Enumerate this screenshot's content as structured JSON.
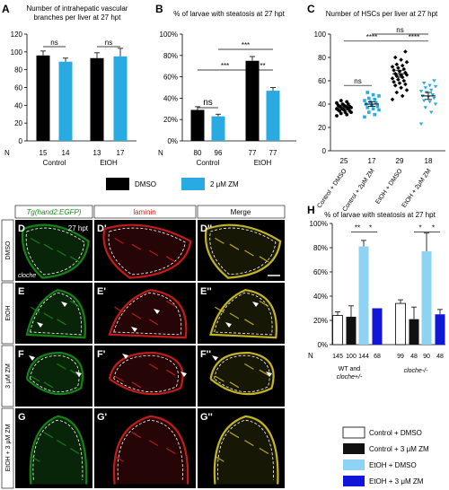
{
  "colors": {
    "dmso": "#000000",
    "zm": "#29abe2",
    "ctrl_zm_h": "#111111",
    "etoh_dmso_h": "#8fd3f4",
    "etoh_zm_h": "#1116d9",
    "green": "#1a8f1a",
    "red": "#d42020",
    "bg": "#ffffff"
  },
  "legend_top": {
    "dmso": "DMSO",
    "zm": "2 μM ZM"
  },
  "chart_data": [
    {
      "panel": "A",
      "type": "bar",
      "title": "Number of intrahepatic vascular branches per liver at 27 hpt",
      "groups": [
        "Control",
        "EtOH"
      ],
      "series": [
        {
          "name": "DMSO",
          "values": [
            96,
            93
          ],
          "err": [
            5,
            6
          ]
        },
        {
          "name": "2 μM ZM",
          "values": [
            89,
            95
          ],
          "err": [
            4,
            9
          ]
        }
      ],
      "n": [
        "15",
        "14",
        "13",
        "17"
      ],
      "n_label": "N",
      "ylim": [
        0,
        120
      ],
      "yticks": [
        "0",
        "20",
        "40",
        "60",
        "80",
        "100",
        "120"
      ],
      "sig": [
        "ns",
        "ns"
      ]
    },
    {
      "panel": "B",
      "type": "bar",
      "title": "% of larvae with steatosis at 27 hpt",
      "groups": [
        "Control",
        "EtOH"
      ],
      "series": [
        {
          "name": "DMSO",
          "values": [
            29,
            75
          ],
          "err": [
            3,
            4
          ]
        },
        {
          "name": "2 μM ZM",
          "values": [
            23,
            47
          ],
          "err": [
            2,
            3
          ]
        }
      ],
      "n": [
        "80",
        "96",
        "77",
        "77"
      ],
      "n_label": "N",
      "ylim": [
        0,
        100
      ],
      "yticks": [
        "0%",
        "20%",
        "40%",
        "60%",
        "80%",
        "100%"
      ],
      "sig": [
        "ns",
        "***",
        "***",
        "**"
      ]
    },
    {
      "panel": "C",
      "type": "scatter",
      "title": "Number of HSCs per liver at 27 hpt",
      "categories": [
        "Control + DMSO",
        "Control + 2μM ZM",
        "EtOH + DMSO",
        "EtOH + 2μM ZM"
      ],
      "means": [
        37,
        40,
        66,
        47
      ],
      "sem": [
        2,
        2,
        3,
        3
      ],
      "points": [
        [
          30,
          31,
          32,
          33,
          33,
          34,
          34,
          35,
          35,
          36,
          36,
          36,
          37,
          37,
          37,
          38,
          38,
          38,
          39,
          39,
          40,
          40,
          41,
          42,
          43
        ],
        [
          29,
          31,
          33,
          35,
          36,
          37,
          38,
          39,
          40,
          41,
          42,
          43,
          44,
          45,
          47,
          48,
          50
        ],
        [
          44,
          47,
          50,
          52,
          54,
          56,
          57,
          58,
          59,
          60,
          61,
          62,
          63,
          64,
          65,
          65,
          66,
          67,
          68,
          69,
          70,
          71,
          72,
          73,
          74,
          76,
          78,
          80,
          85
        ],
        [
          23,
          33,
          37,
          40,
          42,
          43,
          45,
          46,
          47,
          48,
          50,
          51,
          52,
          54,
          55,
          56,
          58,
          60
        ]
      ],
      "n": [
        "25",
        "17",
        "29",
        "18"
      ],
      "ylim": [
        0,
        100
      ],
      "yticks": [
        "0",
        "20",
        "40",
        "60",
        "80",
        "100"
      ],
      "sig": [
        "ns",
        "****",
        "ns",
        "****"
      ]
    },
    {
      "panel": "H",
      "type": "bar",
      "title": "% of larvae with steatosis at 27 hpt",
      "groups": [
        "WT and cloche+/-",
        "cloche-/-"
      ],
      "series": [
        {
          "name": "Control + DMSO",
          "values": [
            24,
            34
          ],
          "err": [
            3,
            3
          ]
        },
        {
          "name": "Control + 3 μM ZM",
          "values": [
            23,
            21
          ],
          "err": [
            9,
            10
          ]
        },
        {
          "name": "EtOH + DMSO",
          "values": [
            81,
            77
          ],
          "err": [
            5,
            15
          ]
        },
        {
          "name": "EtOH + 3 μM ZM",
          "values": [
            30,
            25
          ],
          "err": [
            0,
            4
          ]
        }
      ],
      "n": [
        "145",
        "100",
        "144",
        "68",
        "99",
        "48",
        "90",
        "48"
      ],
      "n_label": "N",
      "ylim": [
        0,
        100
      ],
      "yticks": [
        "0%",
        "20%",
        "40%",
        "60%",
        "80%",
        "100%"
      ],
      "sig": [
        "**",
        "*",
        "*",
        "*"
      ]
    }
  ],
  "micro": {
    "col_headers": [
      "Tg(hand2:EGFP)",
      "laminin",
      "Merge"
    ],
    "row_labels": [
      "DMSO",
      "EtOH",
      "3 μM ZM",
      "EtOH + 3 μM ZM"
    ],
    "panel_labels": [
      [
        "D",
        "D'",
        "D''"
      ],
      [
        "E",
        "E'",
        "E''"
      ],
      [
        "F",
        "F'",
        "F''"
      ],
      [
        "G",
        "G'",
        "G''"
      ]
    ],
    "time_label": "27 hpt",
    "cloche_label": "cloche"
  },
  "panel_letters": {
    "A": "A",
    "B": "B",
    "C": "C",
    "H": "H"
  }
}
